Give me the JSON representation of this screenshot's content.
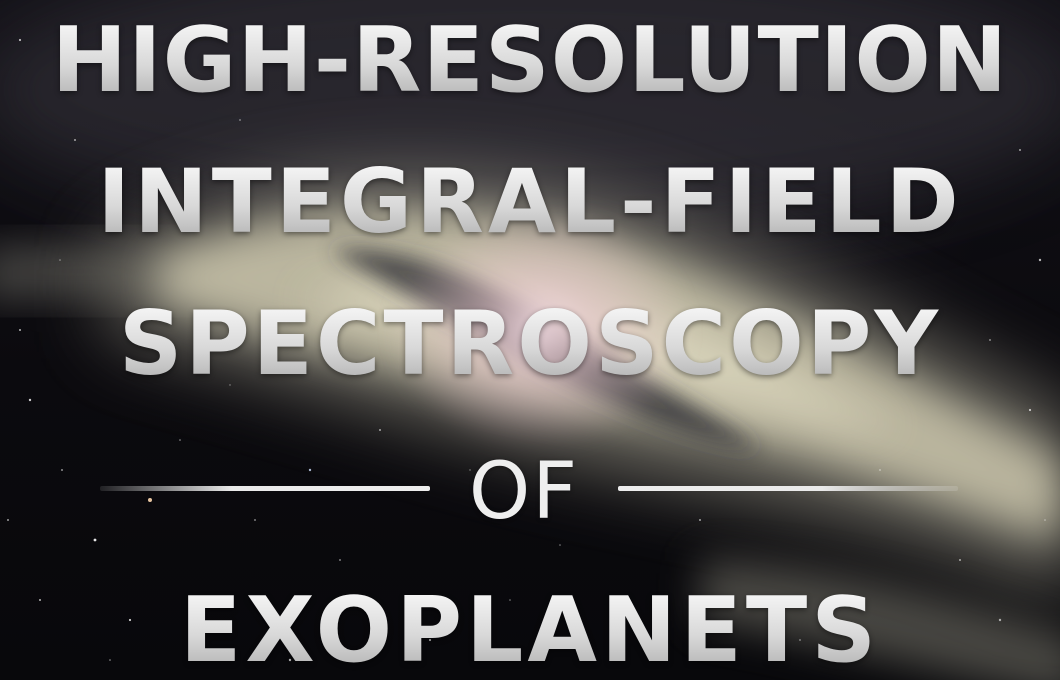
{
  "title": {
    "line1": "HIGH-RESOLUTION",
    "line2": "INTEGRAL-FIELD",
    "line3": "SPECTROSCOPY",
    "connector": "OF",
    "line5": "EXOPLANETS"
  },
  "background": {
    "subject": "starfield with diffuse cloud band",
    "colors": {
      "sky": "#0b0a0e",
      "cloud_light": "#cfcbb2",
      "cloud_mid": "#8f8c80",
      "glow": "#f0cfd6",
      "text": "#e6e6e6"
    }
  }
}
